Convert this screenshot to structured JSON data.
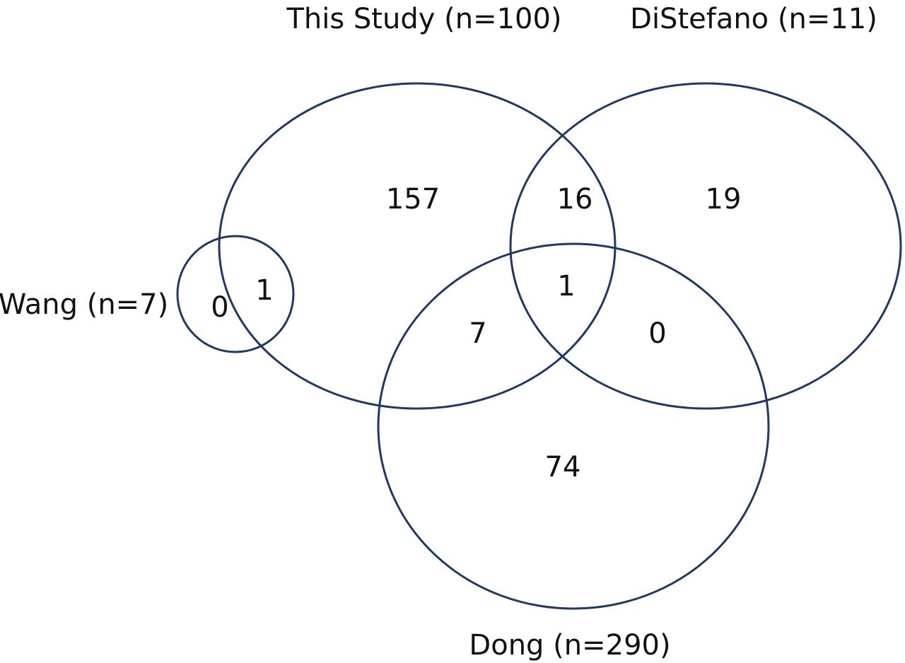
{
  "sets": {
    "this_study": {
      "label": "This Study (n=100)"
    },
    "distefano": {
      "label": "DiStefano (n=11)"
    },
    "wang": {
      "label": "Wang (n=7)"
    },
    "dong": {
      "label": "Dong (n=290)"
    }
  },
  "regions": {
    "this_study_only": "157",
    "this_study_distefano": "16",
    "distefano_only": "19",
    "this_study_distefano_dong": "1",
    "this_study_dong": "7",
    "distefano_dong": "0",
    "dong_only": "74",
    "wang_only": "0",
    "wang_this_study": "1"
  },
  "colors": {
    "circle_stroke": "#1f3864",
    "text": "#111111",
    "background": "#ffffff"
  }
}
